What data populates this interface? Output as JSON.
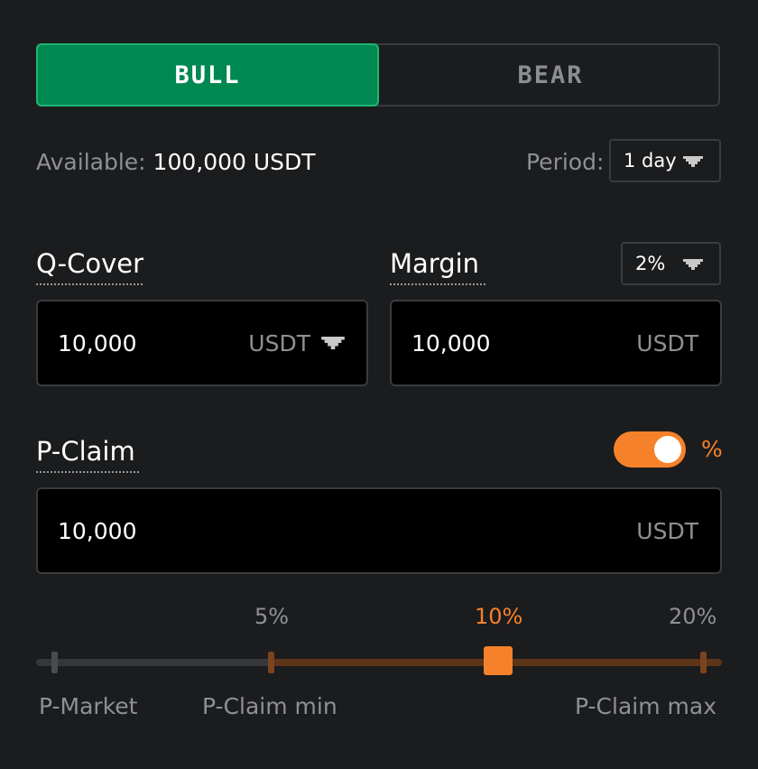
{
  "toggle": {
    "bull_label": "BULL",
    "bear_label": "BEAR",
    "selected": "BULL"
  },
  "available": {
    "label": "Available:",
    "value": "100,000 USDT"
  },
  "period": {
    "label": "Period:",
    "value": "1 day"
  },
  "q_cover": {
    "label": "Q-Cover",
    "value": "10,000",
    "unit": "USDT"
  },
  "margin": {
    "label": "Margin",
    "value": "10,000",
    "unit": "USDT",
    "ratio": "2%"
  },
  "p_claim": {
    "label": "P-Claim",
    "value": "10,000",
    "unit": "USDT",
    "percent_toggle_label": "%",
    "percent_mode": true
  },
  "slider": {
    "ticks": [
      "5%",
      "10%",
      "20%"
    ],
    "active_tick": "10%",
    "bottom_labels": [
      "P-Market",
      "P-Claim min",
      "P-Claim max"
    ]
  },
  "colors": {
    "bull": "#008853",
    "accent": "#f5822a",
    "track_fill": "#5e3519"
  },
  "icons": {
    "dropdown": "caret-down-icon"
  }
}
